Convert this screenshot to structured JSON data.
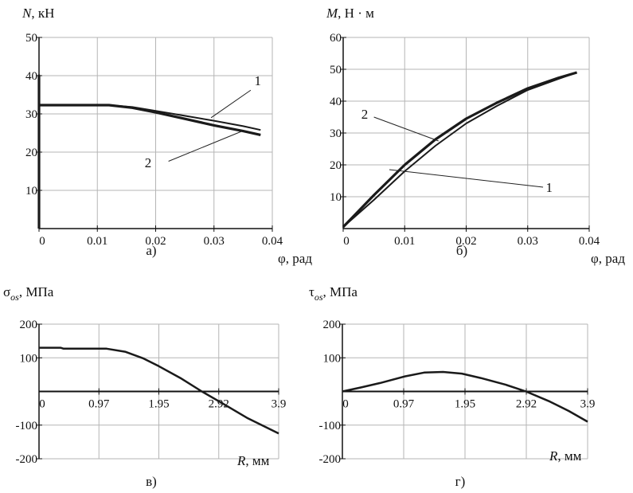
{
  "chart_data": [
    {
      "type": "line",
      "caption": "а)",
      "ylabel_main": "N",
      "ylabel_units": ", кН",
      "xlabel": "φ, рад",
      "xlim": [
        0,
        0.04
      ],
      "ylim": [
        0,
        50
      ],
      "xticks": [
        "0",
        "0.01",
        "0.02",
        "0.03",
        "0.04"
      ],
      "xtick_values": [
        0,
        0.01,
        0.02,
        0.03,
        0.04
      ],
      "yticks": [
        "10",
        "20",
        "30",
        "40",
        "50"
      ],
      "ytick_values": [
        10,
        20,
        30,
        40,
        50
      ],
      "grid": true,
      "series": [
        {
          "name": "1",
          "x": [
            0,
            0,
            0,
            0.012,
            0.016,
            0.02,
            0.025,
            0.03,
            0.035,
            0.038
          ],
          "y": [
            0,
            40,
            32.3,
            32.3,
            31.8,
            30.8,
            29.5,
            28.2,
            26.8,
            25.8
          ]
        },
        {
          "name": "2",
          "x": [
            0,
            0,
            0,
            0.012,
            0.016,
            0.02,
            0.025,
            0.03,
            0.035,
            0.038
          ],
          "y": [
            0,
            40,
            32.3,
            32.3,
            31.6,
            30.4,
            28.7,
            27.0,
            25.5,
            24.5
          ]
        }
      ],
      "annotations": [
        {
          "text": "1",
          "x": 0.0375,
          "y": 37.5,
          "to": [
            0.0295,
            29.0
          ],
          "from": [
            0.0363,
            36.2
          ]
        },
        {
          "text": "2",
          "x": 0.0187,
          "y": 16.0,
          "to": [
            0.035,
            25.6
          ],
          "from": [
            0.0222,
            17.6
          ]
        }
      ]
    },
    {
      "type": "line",
      "caption": "б)",
      "ylabel_main": "M",
      "ylabel_units": ", Н · м",
      "xlabel": "φ, рад",
      "xlim": [
        0,
        0.04
      ],
      "ylim": [
        0,
        60
      ],
      "xticks": [
        "0",
        "0.01",
        "0.02",
        "0.03",
        "0.04"
      ],
      "xtick_values": [
        0,
        0.01,
        0.02,
        0.03,
        0.04
      ],
      "yticks": [
        "10",
        "20",
        "30",
        "40",
        "50",
        "60"
      ],
      "ytick_values": [
        10,
        20,
        30,
        40,
        50,
        60
      ],
      "grid": true,
      "series": [
        {
          "name": "1",
          "x": [
            0,
            0.005,
            0.01,
            0.015,
            0.02,
            0.025,
            0.03,
            0.035,
            0.038
          ],
          "y": [
            0.5,
            9,
            18,
            26,
            33,
            38.5,
            43.5,
            47,
            49
          ]
        },
        {
          "name": "2",
          "x": [
            0,
            0.005,
            0.01,
            0.015,
            0.02,
            0.025,
            0.03,
            0.035,
            0.038
          ],
          "y": [
            0.5,
            10.5,
            20,
            28,
            34.5,
            39.5,
            44,
            47.3,
            49
          ]
        }
      ],
      "annotations": [
        {
          "text": "2",
          "x": 0.0035,
          "y": 34.5,
          "to": [
            0.0155,
            27.5
          ],
          "from": [
            0.005,
            35.0
          ]
        },
        {
          "text": "1",
          "x": 0.0335,
          "y": 11.5,
          "to": [
            0.0075,
            18.5
          ],
          "from": [
            0.0325,
            13.0
          ]
        }
      ]
    },
    {
      "type": "line",
      "caption": "в)",
      "ylabel_main": "σ",
      "ylabel_sub": "os",
      "ylabel_units": ", МПа",
      "xlabel_main": "R",
      "xlabel_units": ", мм",
      "xlim": [
        0,
        3.9
      ],
      "ylim": [
        -200,
        200
      ],
      "xticks": [
        "0",
        "0.97",
        "1.95",
        "2.92",
        "3.9"
      ],
      "xtick_values": [
        0,
        0.975,
        1.95,
        2.925,
        3.9
      ],
      "yticks": [
        "-200",
        "-100",
        "100",
        "200"
      ],
      "ytick_values": [
        -200,
        -100,
        100,
        200
      ],
      "grid": true,
      "series": [
        {
          "name": "σos",
          "x": [
            0,
            0.35,
            0.4,
            1.1,
            1.4,
            1.7,
            1.95,
            2.3,
            2.65,
            3.0,
            3.4,
            3.9
          ],
          "y": [
            130,
            130,
            127,
            127,
            118,
            98,
            75,
            40,
            0,
            -37,
            -80,
            -125
          ]
        }
      ]
    },
    {
      "type": "line",
      "caption": "г)",
      "ylabel_main": "τ",
      "ylabel_sub": "os",
      "ylabel_units": ", МПа",
      "xlabel_main": "R",
      "xlabel_units": ", мм",
      "xlim": [
        0,
        3.9
      ],
      "ylim": [
        -200,
        200
      ],
      "xticks": [
        "0",
        "0.97",
        "1.95",
        "2.92",
        "3.9"
      ],
      "xtick_values": [
        0,
        0.975,
        1.95,
        2.925,
        3.9
      ],
      "yticks": [
        "-200",
        "-100",
        "100",
        "200"
      ],
      "ytick_values": [
        -200,
        -100,
        100,
        200
      ],
      "grid": true,
      "series": [
        {
          "name": "τos",
          "x": [
            0,
            0.3,
            0.6,
            1.0,
            1.3,
            1.6,
            1.9,
            2.2,
            2.6,
            2.92,
            3.3,
            3.6,
            3.9
          ],
          "y": [
            0,
            12,
            25,
            45,
            56,
            58,
            53,
            40,
            20,
            0,
            -30,
            -58,
            -90
          ]
        }
      ]
    }
  ]
}
